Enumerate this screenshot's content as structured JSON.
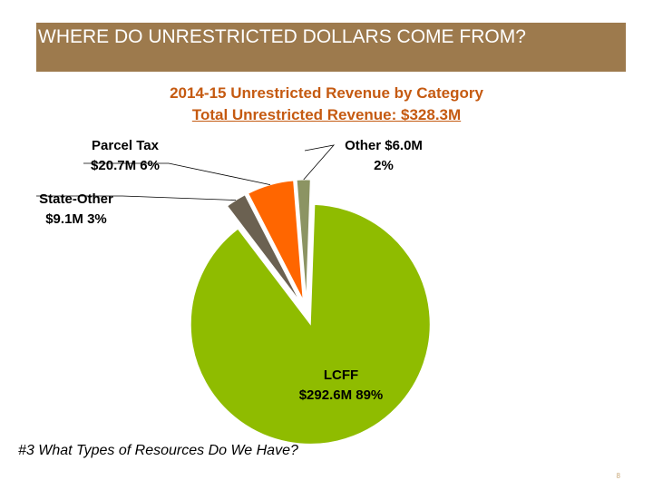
{
  "banner": {
    "title": "WHERE DO UNRESTRICTED DOLLARS COME FROM?"
  },
  "chart_data": {
    "type": "pie",
    "title": "2014-15 Unrestricted Revenue by Category",
    "subtitle": "Total Unrestricted Revenue: $328.3M",
    "slices": [
      {
        "name": "LCFF",
        "amount": "$292.6M",
        "percent": "89%",
        "value": 292.6,
        "color": "#8fbc00",
        "exploded": true
      },
      {
        "name": "State-Other",
        "amount": "$9.1M",
        "percent": "3%",
        "value": 9.1,
        "color": "#6b6151",
        "exploded": true
      },
      {
        "name": "Parcel Tax",
        "amount": "$20.7M",
        "percent": "6%",
        "value": 20.7,
        "color": "#ff6600",
        "exploded": true
      },
      {
        "name": "Other",
        "amount": "$6.0M",
        "percent": "2%",
        "value": 6.0,
        "color": "#8c9463",
        "exploded": true
      }
    ]
  },
  "footer": {
    "text": "#3 What Types of Resources Do We Have?"
  },
  "page_number": "8"
}
